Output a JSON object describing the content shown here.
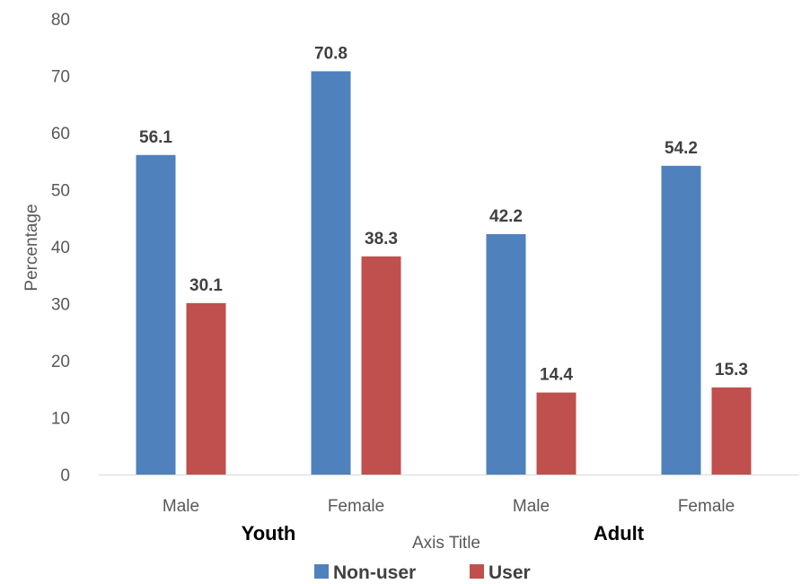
{
  "chart_data": {
    "type": "bar",
    "title": "",
    "ylabel": "Percentage",
    "xlabel": "Axis Title",
    "ylim": [
      0,
      80
    ],
    "yticks": [
      0,
      10,
      20,
      30,
      40,
      50,
      60,
      70,
      80
    ],
    "grid": false,
    "legend_position": "bottom",
    "categories": [
      "Male",
      "Female",
      "Male",
      "Female"
    ],
    "groups": [
      {
        "label": "Youth",
        "categories": [
          0,
          1
        ]
      },
      {
        "label": "Adult",
        "categories": [
          2,
          3
        ]
      }
    ],
    "series": [
      {
        "name": "Non-user",
        "color": "#4F81BD",
        "values": [
          56.1,
          70.8,
          42.2,
          54.2
        ]
      },
      {
        "name": "User",
        "color": "#C0504D",
        "values": [
          30.1,
          38.3,
          14.4,
          15.3
        ]
      }
    ]
  }
}
